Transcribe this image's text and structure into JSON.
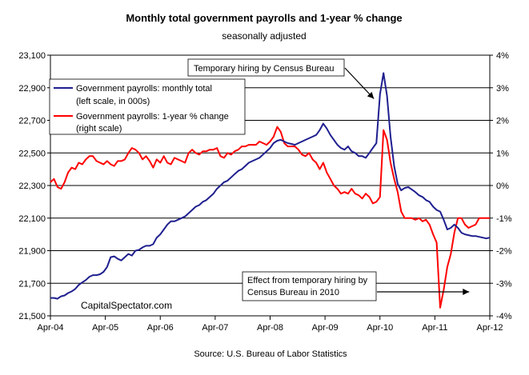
{
  "chart_data": {
    "type": "line",
    "title": "Monthly total government payrolls and 1-year %  change",
    "subtitle": "seasonally adjusted",
    "source": "Source: U.S. Bureau of Labor Statistics",
    "watermark": "CapitalSpectator.com",
    "x_tick_labels": [
      "Apr-04",
      "Apr-05",
      "Apr-06",
      "Apr-07",
      "Apr-08",
      "Apr-09",
      "Apr-10",
      "Apr-11",
      "Apr-12"
    ],
    "y_left": {
      "ylim": [
        21500,
        23100
      ],
      "tick_labels": [
        "21,500",
        "21,700",
        "21,900",
        "22,100",
        "22,300",
        "22,500",
        "22,700",
        "22,900",
        "23,100"
      ]
    },
    "y_right": {
      "ylim": [
        -4,
        4
      ],
      "tick_labels": [
        "-4%",
        "-3%",
        "-2%",
        "-1%",
        "0%",
        "1%",
        "2%",
        "3%",
        "4%"
      ]
    },
    "grid": true,
    "legend_placement": "top-left",
    "series": [
      {
        "name": "Government payrolls: monthly total",
        "legend_note": "(left scale, in 000s)",
        "axis": "left",
        "color": "#1f1f8f",
        "values": [
          21610,
          21610,
          21605,
          21620,
          21625,
          21640,
          21650,
          21665,
          21690,
          21705,
          21720,
          21740,
          21750,
          21750,
          21755,
          21770,
          21800,
          21860,
          21865,
          21850,
          21840,
          21860,
          21880,
          21870,
          21900,
          21905,
          21920,
          21930,
          21930,
          21940,
          21980,
          22000,
          22030,
          22060,
          22080,
          22080,
          22090,
          22100,
          22110,
          22130,
          22150,
          22170,
          22180,
          22200,
          22210,
          22230,
          22250,
          22280,
          22300,
          22320,
          22330,
          22350,
          22370,
          22390,
          22400,
          22420,
          22440,
          22450,
          22460,
          22470,
          22490,
          22510,
          22530,
          22560,
          22575,
          22580,
          22570,
          22560,
          22555,
          22550,
          22560,
          22570,
          22580,
          22590,
          22600,
          22610,
          22640,
          22680,
          22650,
          22610,
          22580,
          22550,
          22530,
          22520,
          22540,
          22510,
          22500,
          22480,
          22480,
          22470,
          22500,
          22530,
          22560,
          22860,
          22990,
          22850,
          22600,
          22420,
          22310,
          22270,
          22285,
          22290,
          22275,
          22260,
          22240,
          22230,
          22210,
          22200,
          22170,
          22150,
          22140,
          22090,
          22030,
          22040,
          22060,
          22040,
          22010,
          22000,
          21995,
          21990,
          21990,
          21985,
          21980,
          21975,
          21980
        ]
      },
      {
        "name": "Government payrolls: 1-year % change",
        "legend_note": "(right scale)",
        "axis": "right",
        "color": "#ff0000",
        "values": [
          0.1,
          0.2,
          -0.05,
          -0.1,
          0.1,
          0.4,
          0.55,
          0.5,
          0.7,
          0.65,
          0.8,
          0.9,
          0.9,
          0.75,
          0.7,
          0.65,
          0.75,
          0.65,
          0.6,
          0.75,
          0.75,
          0.8,
          1.0,
          1.15,
          1.1,
          1.0,
          0.8,
          0.9,
          0.75,
          0.55,
          0.8,
          0.7,
          0.9,
          0.7,
          0.65,
          0.85,
          0.8,
          0.75,
          0.7,
          1.0,
          1.1,
          1.0,
          0.95,
          1.05,
          1.05,
          1.1,
          1.1,
          1.15,
          0.9,
          0.85,
          1.0,
          0.95,
          1.05,
          1.1,
          1.2,
          1.2,
          1.25,
          1.25,
          1.25,
          1.35,
          1.3,
          1.25,
          1.35,
          1.5,
          1.8,
          1.65,
          1.3,
          1.2,
          1.2,
          1.2,
          1.1,
          0.95,
          0.9,
          1.0,
          0.8,
          0.7,
          0.5,
          0.7,
          0.4,
          0.2,
          0.0,
          -0.1,
          -0.25,
          -0.2,
          -0.25,
          -0.1,
          -0.25,
          -0.3,
          -0.4,
          -0.25,
          -0.35,
          -0.55,
          -0.5,
          -0.35,
          1.7,
          1.4,
          0.7,
          0.2,
          -0.2,
          -0.8,
          -1.0,
          -1.0,
          -1.0,
          -1.05,
          -1.0,
          -1.1,
          -1.05,
          -1.2,
          -1.5,
          -1.75,
          -3.75,
          -3.2,
          -2.5,
          -2.1,
          -1.45,
          -1.0,
          -1.0,
          -1.2,
          -1.3,
          -1.25,
          -1.2,
          -1.0,
          -1.0,
          -1.0,
          -1.0
        ]
      }
    ],
    "annotations": [
      {
        "text_lines": [
          "Temporary hiring by Census Bureau"
        ],
        "points_to_index": 94,
        "points_to_series": 0
      },
      {
        "text_lines": [
          "Effect from temporary hiring by",
          "Census Bureau in 2010"
        ],
        "points_to_index": 120,
        "points_to_series": 1
      }
    ],
    "colors": {
      "frame": "#000000",
      "grid": "#000000",
      "background": "#ffffff"
    }
  }
}
